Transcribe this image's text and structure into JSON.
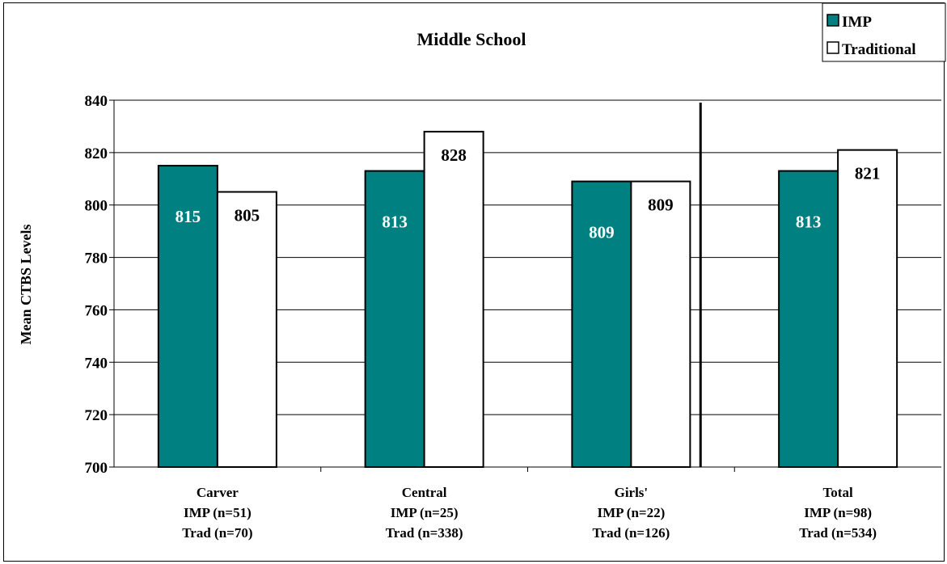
{
  "chart_data": {
    "type": "bar",
    "title": "Middle School",
    "ylabel": "Mean CTBS Levels",
    "xlabel": "",
    "ylim": [
      700,
      840
    ],
    "yticks": [
      700,
      720,
      740,
      760,
      780,
      800,
      820,
      840
    ],
    "grid": true,
    "legend_position": "top-right",
    "categories": [
      [
        "Carver",
        "IMP (n=51)",
        "Trad (n=70)"
      ],
      [
        "Central",
        "IMP (n=25)",
        "Trad (n=338)"
      ],
      [
        "Girls'",
        "IMP (n=22)",
        "Trad (n=126)"
      ],
      [
        "Total",
        "IMP (n=98)",
        "Trad (n=534)"
      ]
    ],
    "series": [
      {
        "name": "IMP",
        "color": "#008080",
        "values": [
          815,
          813,
          809,
          813
        ]
      },
      {
        "name": "Traditional",
        "color": "#ffffff",
        "values": [
          805,
          828,
          809,
          821
        ]
      }
    ]
  }
}
